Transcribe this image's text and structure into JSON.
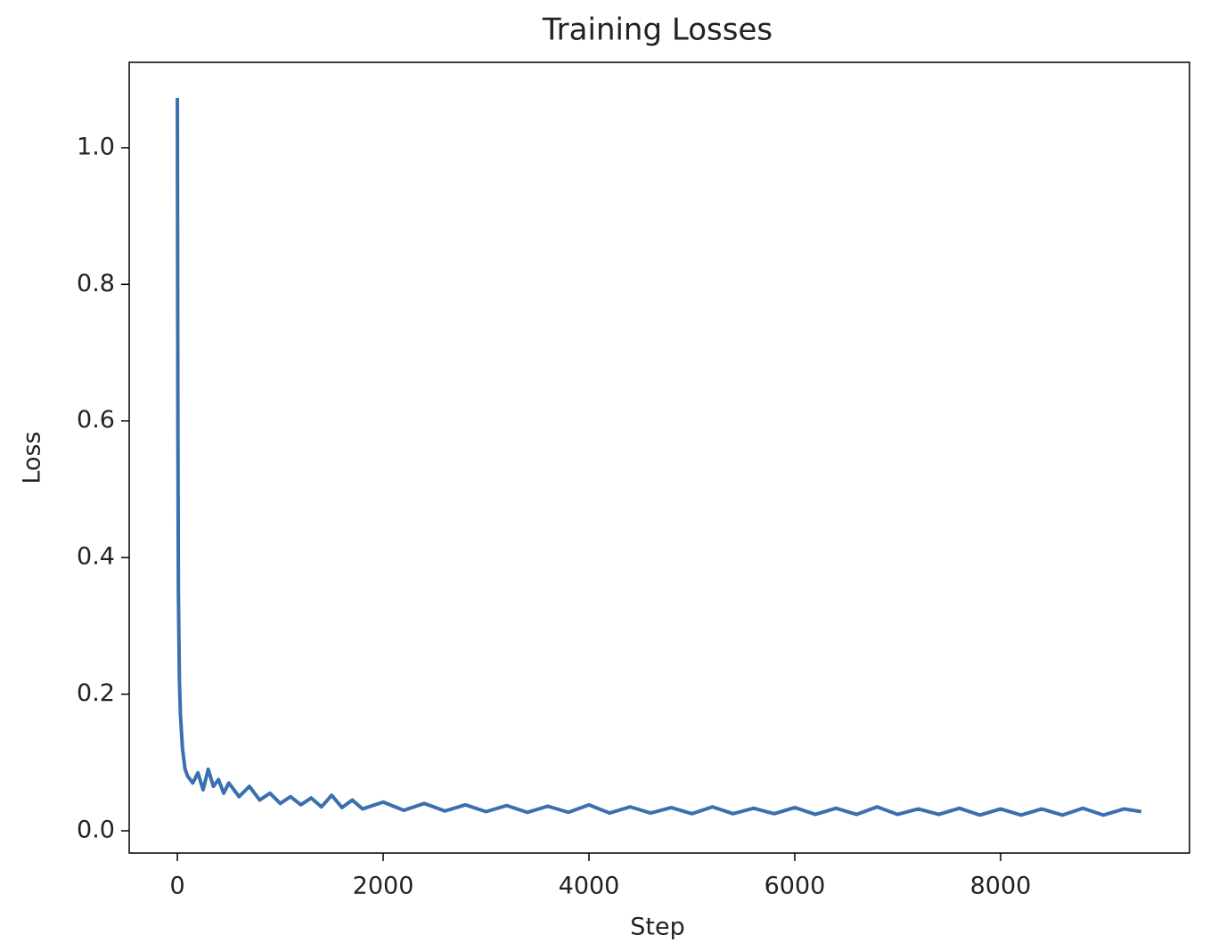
{
  "chart_data": {
    "type": "line",
    "title": "Training Losses",
    "x_label": "Step",
    "y_label": "Loss",
    "color": "#3a70ae",
    "x": [
      0,
      5,
      10,
      20,
      30,
      50,
      75,
      100,
      150,
      200,
      250,
      300,
      350,
      400,
      450,
      500,
      600,
      700,
      800,
      900,
      1000,
      1100,
      1200,
      1300,
      1400,
      1500,
      1600,
      1700,
      1800,
      2000,
      2200,
      2400,
      2600,
      2800,
      3000,
      3200,
      3400,
      3600,
      3800,
      4000,
      4200,
      4400,
      4600,
      4800,
      5000,
      5200,
      5400,
      5600,
      5800,
      6000,
      6200,
      6400,
      6600,
      6800,
      7000,
      7200,
      7400,
      7600,
      7800,
      8000,
      8200,
      8400,
      8600,
      8800,
      9000,
      9200,
      9368
    ],
    "values": [
      1.073,
      0.6,
      0.35,
      0.22,
      0.17,
      0.12,
      0.09,
      0.08,
      0.07,
      0.085,
      0.06,
      0.09,
      0.065,
      0.075,
      0.055,
      0.07,
      0.05,
      0.065,
      0.045,
      0.055,
      0.04,
      0.05,
      0.038,
      0.048,
      0.035,
      0.052,
      0.034,
      0.045,
      0.032,
      0.042,
      0.03,
      0.04,
      0.029,
      0.038,
      0.028,
      0.037,
      0.027,
      0.036,
      0.027,
      0.038,
      0.026,
      0.035,
      0.026,
      0.034,
      0.025,
      0.035,
      0.025,
      0.033,
      0.025,
      0.034,
      0.024,
      0.033,
      0.024,
      0.035,
      0.024,
      0.032,
      0.024,
      0.033,
      0.023,
      0.032,
      0.023,
      0.032,
      0.023,
      0.033,
      0.023,
      0.032,
      0.028
    ],
    "xlim": [
      -468,
      9836
    ],
    "xticks": [
      0,
      2000,
      4000,
      6000,
      8000
    ],
    "ylim": [
      -0.0326,
      1.125
    ],
    "yticks": [
      {
        "value": 0,
        "label": "0.0"
      },
      0.2,
      0.4,
      0.6,
      0.8,
      {
        "value": 1,
        "label": "1.0"
      }
    ],
    "grid": false
  }
}
